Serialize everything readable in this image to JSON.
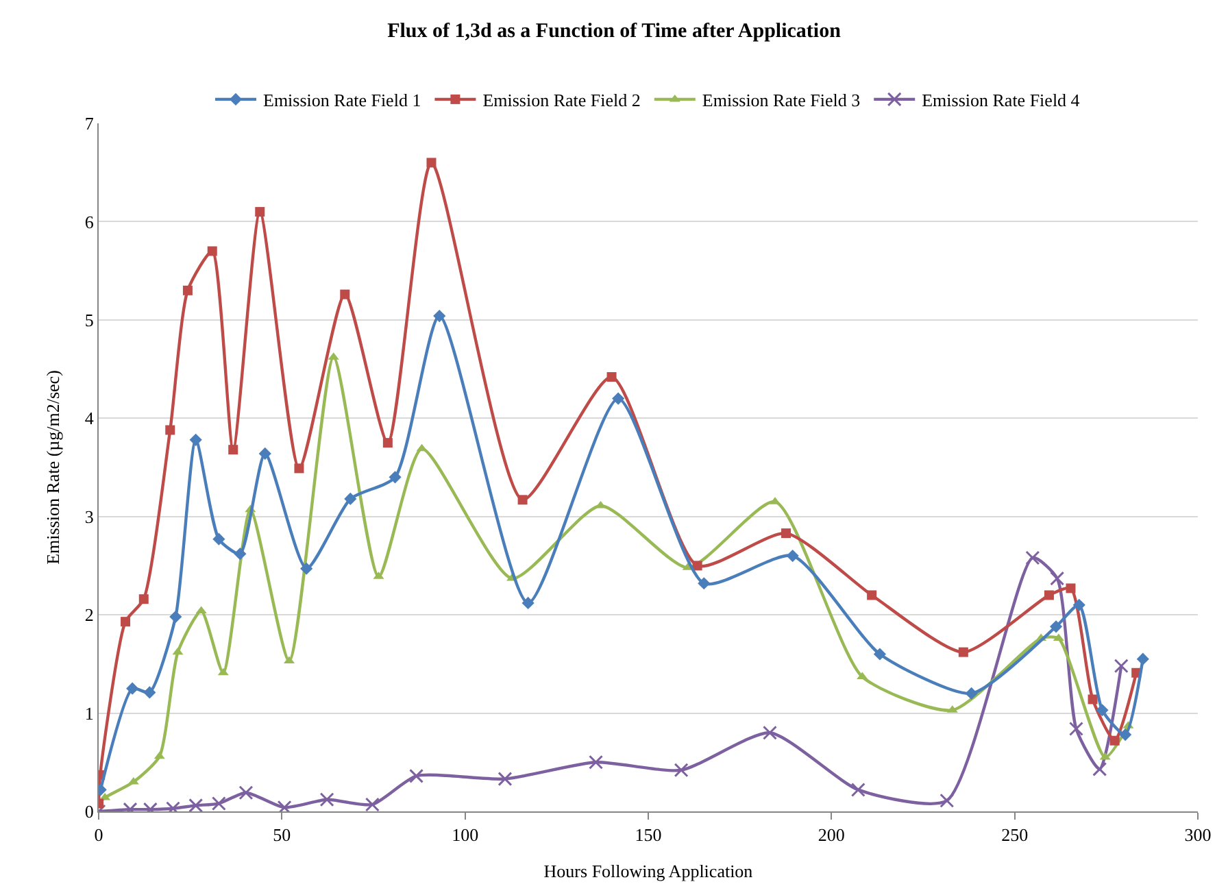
{
  "chart_data": {
    "type": "line",
    "title": "Flux of 1,3d as a Function of Time after Application",
    "xlabel": "Hours Following Application",
    "ylabel": "Emission Rate (µg/m2/sec)",
    "xlim": [
      0,
      300
    ],
    "xticks": [
      0,
      50,
      100,
      150,
      200,
      250,
      300
    ],
    "ylim": [
      0,
      7
    ],
    "yticks": [
      0,
      1,
      2,
      3,
      4,
      5,
      6,
      7
    ],
    "grid": "y",
    "legend": "top",
    "line_style": "solid",
    "series": [
      {
        "name": "Emission Rate Field 1",
        "color": "#4a7ebb",
        "marker": "diamond",
        "x": [
          0.5,
          9.2,
          13.9,
          21,
          26.5,
          32.8,
          38.6,
          45.4,
          56.7,
          68.7,
          80.9,
          93,
          117.2,
          141.8,
          165.2,
          189.4,
          213.2,
          238.2,
          261.3,
          267.6,
          273.9,
          280.2,
          285
        ],
        "values": [
          0.22,
          1.25,
          1.21,
          1.98,
          3.78,
          2.77,
          2.62,
          3.64,
          2.47,
          3.18,
          3.4,
          5.04,
          2.12,
          4.2,
          2.32,
          2.6,
          1.6,
          1.2,
          1.88,
          2.1,
          1.03,
          0.78,
          1.55
        ]
      },
      {
        "name": "Emission Rate Field 2",
        "color": "#be4b48",
        "marker": "square",
        "x": [
          0,
          0.4,
          7.3,
          12.3,
          19.5,
          24.3,
          31,
          36.7,
          44,
          54.7,
          67.2,
          78.9,
          90.8,
          115.7,
          140,
          163.4,
          187.6,
          211,
          236,
          259.4,
          265.3,
          271.3,
          277.3,
          283.2
        ],
        "values": [
          0.08,
          0.37,
          1.93,
          2.16,
          3.88,
          5.3,
          5.7,
          3.68,
          6.1,
          3.49,
          5.26,
          3.75,
          6.6,
          3.17,
          4.42,
          2.5,
          2.83,
          2.2,
          1.62,
          2.2,
          2.27,
          1.14,
          0.72,
          1.41
        ]
      },
      {
        "name": "Emission Rate Field 3",
        "color": "#98b954",
        "marker": "triangle",
        "x": [
          0,
          1.7,
          9.5,
          16.6,
          21.6,
          28,
          34,
          41.4,
          52,
          64.1,
          76.4,
          88.2,
          112.8,
          137,
          160.8,
          184.6,
          208.4,
          233,
          257.2,
          262,
          274.7,
          281
        ],
        "values": [
          0.08,
          0.14,
          0.3,
          0.56,
          1.62,
          2.04,
          1.41,
          3.07,
          1.53,
          4.62,
          2.39,
          3.69,
          2.37,
          3.11,
          2.48,
          3.15,
          1.37,
          1.03,
          1.76,
          1.76,
          0.55,
          0.87
        ]
      },
      {
        "name": "Emission Rate Field 4",
        "color": "#7d60a0",
        "marker": "cross",
        "x": [
          0,
          8.6,
          14.1,
          20.3,
          26.5,
          32.8,
          40.2,
          50.7,
          62.3,
          74.7,
          86.7,
          110.9,
          135.7,
          159,
          183.2,
          207.3,
          231.5,
          254.9,
          261.6,
          266.8,
          273.2,
          279.1
        ],
        "values": [
          0,
          0.02,
          0.02,
          0.03,
          0.06,
          0.08,
          0.19,
          0.04,
          0.12,
          0.07,
          0.36,
          0.33,
          0.5,
          0.42,
          0.8,
          0.22,
          0.11,
          2.58,
          2.37,
          0.84,
          0.43,
          1.48
        ]
      }
    ]
  }
}
